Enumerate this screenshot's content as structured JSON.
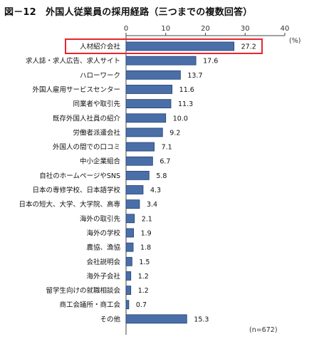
{
  "title": "図－12　外国人従業員の採用経路（三つまでの複数回答）",
  "chart_data": {
    "type": "bar",
    "orientation": "horizontal",
    "title": "図－12　外国人従業員の採用経路（三つまでの複数回答）",
    "unit": "(%)",
    "note": "(n=672)",
    "xlim": [
      0,
      40
    ],
    "ticks": [
      0,
      10,
      20,
      30,
      40
    ],
    "grid": false,
    "categories": [
      "人材紹介会社",
      "求人誌・求人広告、求人サイト",
      "ハローワーク",
      "外国人雇用サービスセンター",
      "同業者や取引先",
      "既存外国人社員の紹介",
      "労働者派遣会社",
      "外国人の間での口コミ",
      "中小企業組合",
      "自社のホームページやSNS",
      "日本の専修学校、日本語学校",
      "日本の短大、大学、大学院、高専",
      "海外の取引先",
      "海外の学校",
      "農協、漁協",
      "会社説明会",
      "海外子会社",
      "留学生向けの就職相談会",
      "商工会議所・商工会",
      "その他"
    ],
    "values": [
      27.2,
      17.6,
      13.7,
      11.6,
      11.3,
      10.0,
      9.2,
      7.1,
      6.7,
      5.8,
      4.3,
      3.4,
      2.1,
      1.9,
      1.8,
      1.5,
      1.2,
      1.2,
      0.7,
      15.3
    ],
    "value_labels": [
      "27.2",
      "17.6",
      "13.7",
      "11.6",
      "11.3",
      "10.0",
      "9.2",
      "7.1",
      "6.7",
      "5.8",
      "4.3",
      "3.4",
      "2.1",
      "1.9",
      "1.8",
      "1.5",
      "1.2",
      "1.2",
      "0.7",
      "15.3"
    ],
    "highlight_index": 0,
    "colors": {
      "bar": "#4a6fa8",
      "bar_edge": "#1f3f73",
      "highlight_box": "#e8252e",
      "axis": "#444444"
    }
  }
}
